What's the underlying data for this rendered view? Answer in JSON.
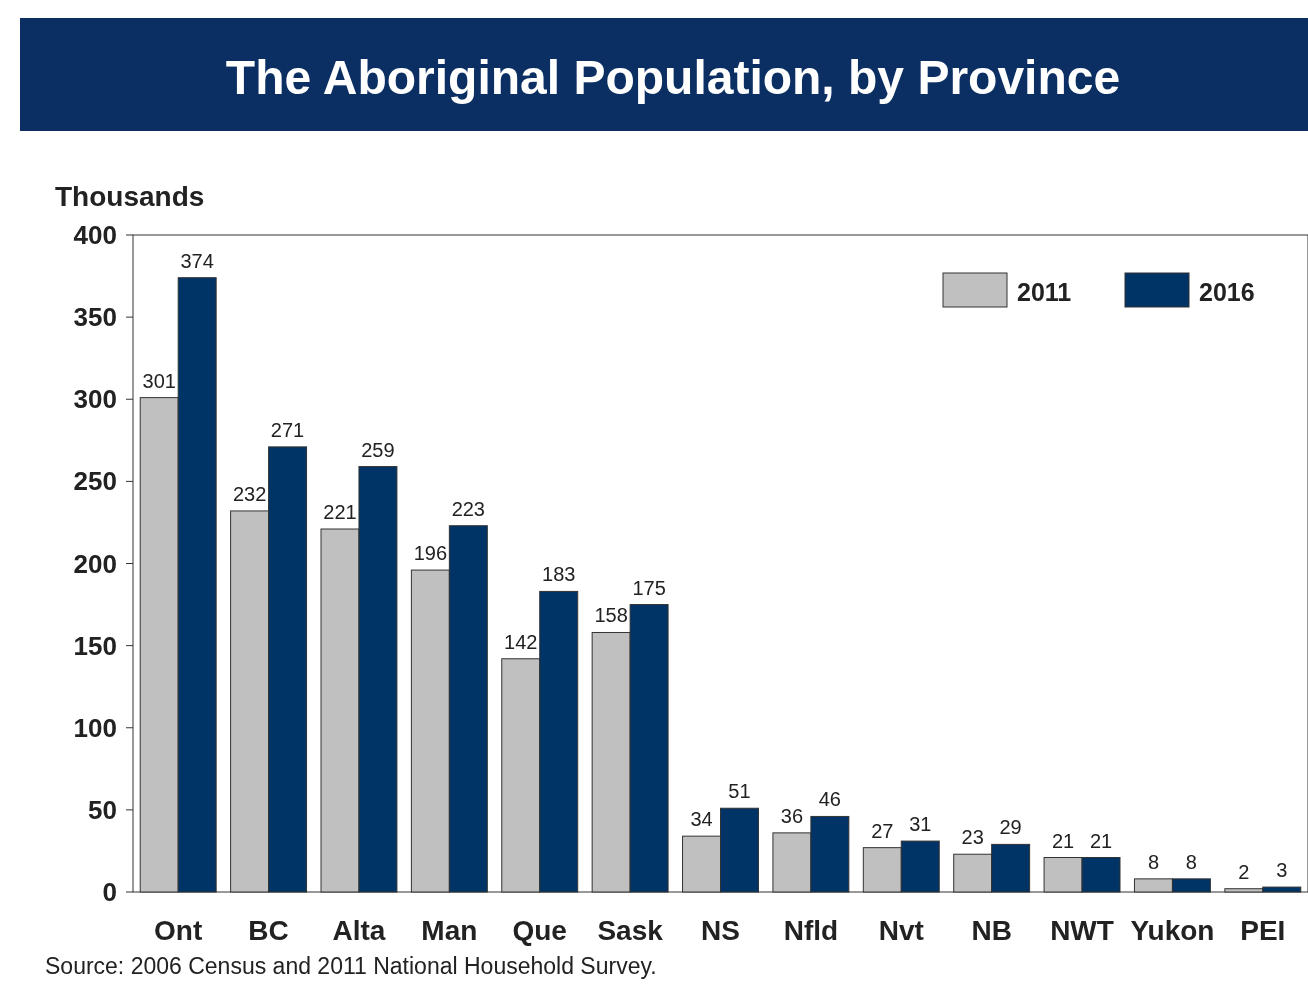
{
  "chart_data": {
    "type": "bar",
    "title": "The Aboriginal Population, by Province",
    "ylabel": "Thousands",
    "categories": [
      "Ont",
      "BC",
      "Alta",
      "Man",
      "Que",
      "Sask",
      "NS",
      "Nfld",
      "Nvt",
      "NB",
      "NWT",
      "Yukon",
      "PEI"
    ],
    "series": [
      {
        "name": "2011",
        "color": "#c0c0c0",
        "values": [
          301,
          232,
          221,
          196,
          142,
          158,
          34,
          36,
          27,
          23,
          21,
          8,
          2
        ]
      },
      {
        "name": "2016",
        "color": "#003366",
        "values": [
          374,
          271,
          259,
          223,
          183,
          175,
          51,
          46,
          31,
          29,
          21,
          8,
          3
        ]
      }
    ],
    "ylim": [
      0,
      400
    ],
    "yticks": [
      0,
      50,
      100,
      150,
      200,
      250,
      300,
      350,
      400
    ],
    "data_labels": true,
    "legend": "top right",
    "annotations": [
      "Source: 2006 Census and 2011 National Household Survey."
    ]
  }
}
